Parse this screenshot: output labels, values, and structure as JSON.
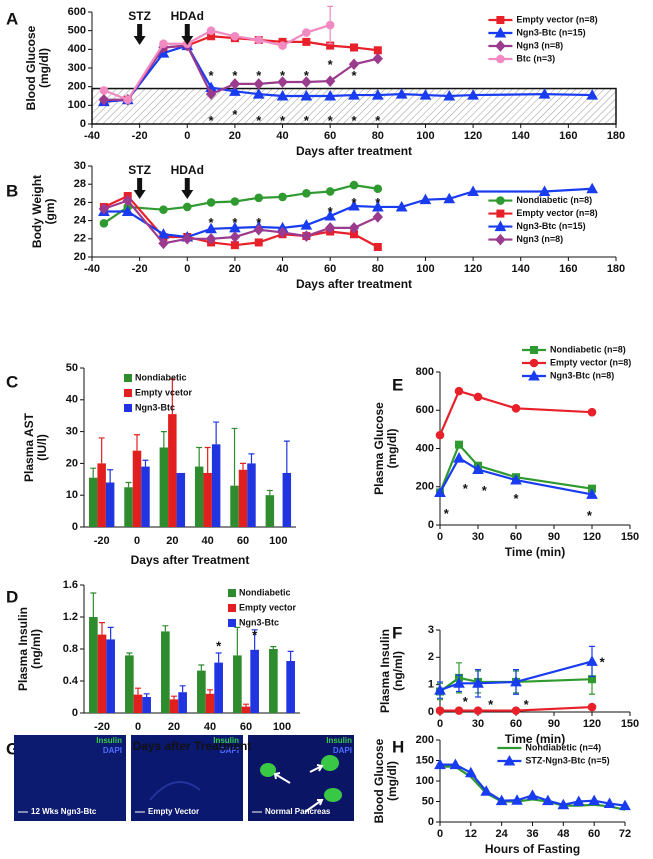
{
  "chart_data": [
    {
      "type": "line",
      "label": "A",
      "ylabel": [
        "Blood Glucose",
        "(mg/dl)"
      ],
      "xlabel": "Days after treatment",
      "xlim": [
        -40,
        180
      ],
      "xticks": [
        -40,
        -20,
        0,
        20,
        40,
        60,
        80,
        100,
        120,
        140,
        160,
        180
      ],
      "ylim": [
        0,
        600
      ],
      "yticks": [
        0,
        100,
        200,
        300,
        400,
        500,
        600
      ],
      "band": [
        0,
        190
      ],
      "legend": "upper right",
      "arrows": [
        {
          "text": "STZ",
          "x": -20
        },
        {
          "text": "HDAd",
          "x": 0
        }
      ],
      "series": [
        {
          "name": "Empty vector (n=8)",
          "color": "#e8202a",
          "marker": "square",
          "x": [
            -35,
            -25,
            -10,
            0,
            10,
            20,
            30,
            40,
            50,
            60,
            70,
            80
          ],
          "values": [
            120,
            130,
            410,
            420,
            470,
            460,
            450,
            440,
            440,
            420,
            410,
            395
          ]
        },
        {
          "name": "Ngn3-Btc (n=15)",
          "color": "#1a3cf0",
          "marker": "triangle",
          "x": [
            -35,
            -25,
            -10,
            0,
            10,
            20,
            30,
            40,
            50,
            60,
            70,
            80,
            90,
            100,
            110,
            120,
            150,
            170
          ],
          "values": [
            120,
            130,
            380,
            420,
            195,
            175,
            160,
            150,
            150,
            150,
            155,
            155,
            160,
            155,
            150,
            155,
            160,
            155
          ]
        },
        {
          "name": "Ngn3 (n=8)",
          "color": "#9b3b8e",
          "marker": "diamond",
          "x": [
            -35,
            -25,
            -10,
            0,
            10,
            20,
            30,
            40,
            50,
            60,
            70,
            80
          ],
          "values": [
            130,
            130,
            410,
            420,
            160,
            215,
            215,
            225,
            225,
            230,
            320,
            350
          ]
        },
        {
          "name": "Btc (n=3)",
          "color": "#f08ac0",
          "marker": "circle",
          "x": [
            -35,
            -25,
            -10,
            0,
            10,
            20,
            30,
            40,
            50,
            60
          ],
          "values": [
            180,
            130,
            430,
            430,
            500,
            470,
            450,
            420,
            490,
            530
          ],
          "errors": [
            null,
            null,
            null,
            null,
            null,
            null,
            null,
            null,
            null,
            100
          ]
        }
      ],
      "annotations": [
        {
          "text": "*",
          "x": 10,
          "y": 270
        },
        {
          "text": "*",
          "x": 20,
          "y": 270
        },
        {
          "text": "*",
          "x": 30,
          "y": 270
        },
        {
          "text": "*",
          "x": 40,
          "y": 270
        },
        {
          "text": "*",
          "x": 50,
          "y": 270
        },
        {
          "text": "*",
          "x": 60,
          "y": 330
        },
        {
          "text": "*",
          "x": 70,
          "y": 270
        },
        {
          "text": "*",
          "x": 10,
          "y": 30
        },
        {
          "text": "*",
          "x": 20,
          "y": 60
        },
        {
          "text": "*",
          "x": 30,
          "y": 30
        },
        {
          "text": "*",
          "x": 40,
          "y": 30
        },
        {
          "text": "*",
          "x": 50,
          "y": 30
        },
        {
          "text": "*",
          "x": 60,
          "y": 30
        },
        {
          "text": "*",
          "x": 70,
          "y": 30
        },
        {
          "text": "*",
          "x": 80,
          "y": 30
        }
      ]
    },
    {
      "type": "line",
      "label": "B",
      "ylabel": [
        "Body Weight",
        "(gm)"
      ],
      "xlabel": "Days after treatment",
      "xlim": [
        -40,
        180
      ],
      "xticks": [
        -40,
        -20,
        0,
        20,
        40,
        60,
        80,
        100,
        120,
        140,
        160,
        180
      ],
      "ylim": [
        20,
        30
      ],
      "yticks": [
        20,
        22,
        24,
        26,
        28,
        30
      ],
      "legend": "center right",
      "arrows": [
        {
          "text": "STZ",
          "x": -20
        },
        {
          "text": "HDAd",
          "x": 0
        }
      ],
      "series": [
        {
          "name": "Nondiabetic (n=8)",
          "color": "#2f9a2f",
          "marker": "circle",
          "x": [
            -35,
            -25,
            -10,
            0,
            10,
            20,
            30,
            40,
            50,
            60,
            70,
            80
          ],
          "values": [
            23.7,
            25.5,
            25.2,
            25.5,
            26,
            26.1,
            26.5,
            26.6,
            27,
            27.2,
            27.9,
            27.5
          ]
        },
        {
          "name": "Empty vector (n=8)",
          "color": "#e8202a",
          "marker": "square",
          "x": [
            -35,
            -25,
            -10,
            0,
            10,
            20,
            30,
            40,
            50,
            60,
            70,
            80
          ],
          "values": [
            25.5,
            26.7,
            22.2,
            22.2,
            21.6,
            21.3,
            21.6,
            22.5,
            22.3,
            22.8,
            22.5,
            21.1
          ]
        },
        {
          "name": "Ngn3-Btc (n=15)",
          "color": "#1a3cf0",
          "marker": "triangle",
          "x": [
            -35,
            -25,
            -10,
            0,
            10,
            20,
            30,
            40,
            50,
            60,
            70,
            80,
            90,
            100,
            110,
            120,
            150,
            170
          ],
          "values": [
            25,
            25,
            22.5,
            22.2,
            23.1,
            23.2,
            23.3,
            23.2,
            23.5,
            24.5,
            25.6,
            25.5,
            25.5,
            26.3,
            26.4,
            27.2,
            27.2,
            27.5
          ]
        },
        {
          "name": "Ngn3 (n=8)",
          "color": "#9b3b8e",
          "marker": "diamond",
          "x": [
            -35,
            -25,
            -10,
            0,
            10,
            20,
            30,
            40,
            50,
            60,
            70,
            80
          ],
          "values": [
            25.3,
            26.2,
            21.5,
            22,
            22,
            22.2,
            23,
            22.7,
            22.3,
            23.2,
            23.2,
            24.4
          ]
        }
      ],
      "annotations": [
        {
          "text": "*",
          "x": 10,
          "y": 24
        },
        {
          "text": "*",
          "x": 20,
          "y": 24
        },
        {
          "text": "*",
          "x": 30,
          "y": 24
        },
        {
          "text": "*",
          "x": 60,
          "y": 25.2
        },
        {
          "text": "*",
          "x": 70,
          "y": 26.2
        },
        {
          "text": "*",
          "x": 80,
          "y": 26.2
        }
      ]
    },
    {
      "type": "bar",
      "label": "C",
      "ylabel": [
        "Plasma AST",
        "(IU/l)"
      ],
      "xlabel": "Days after Treatment",
      "categories": [
        "-20",
        "0",
        "20",
        "40",
        "60",
        "100"
      ],
      "ylim": [
        0,
        50
      ],
      "yticks": [
        0,
        10,
        20,
        30,
        40,
        50
      ],
      "legend": "upper left",
      "series": [
        {
          "name": "Nondiabetic",
          "color": "#2e8b2e",
          "values": [
            15.5,
            12.5,
            25,
            19,
            13,
            10
          ],
          "errors": [
            3,
            1.5,
            5,
            6,
            18,
            1.5
          ]
        },
        {
          "name": "Empty vcetor",
          "color": "#e21f1f",
          "values": [
            20,
            24,
            35.5,
            17,
            18,
            null
          ],
          "errors": [
            8,
            5,
            11,
            8,
            2,
            null
          ]
        },
        {
          "name": "Ngn3-Btc",
          "color": "#2035e0",
          "values": [
            14,
            19,
            17,
            26,
            20,
            17
          ],
          "errors": [
            4,
            2,
            null,
            7,
            3,
            10
          ]
        }
      ]
    },
    {
      "type": "bar",
      "label": "D",
      "ylabel": [
        "Plasma Insulin",
        "(ng/ml)"
      ],
      "xlabel": "Days after Treatment",
      "categories": [
        "-20",
        "0",
        "20",
        "40",
        "60",
        "100"
      ],
      "ylim": [
        0,
        1.6
      ],
      "yticks": [
        0,
        0.4,
        0.8,
        1.2,
        1.6
      ],
      "legend": "upper right",
      "series": [
        {
          "name": "Nondiabetic",
          "color": "#2e8b2e",
          "values": [
            1.2,
            0.72,
            1.02,
            0.53,
            0.72,
            0.8
          ],
          "errors": [
            0.3,
            0.03,
            0.07,
            0.07,
            0.35,
            0.03
          ]
        },
        {
          "name": "Empty vector",
          "color": "#e21f1f",
          "values": [
            0.98,
            0.23,
            0.17,
            0.24,
            0.08,
            null
          ],
          "errors": [
            0.15,
            0.08,
            0.04,
            0.05,
            0.03,
            null
          ]
        },
        {
          "name": "Ngn3-Btc",
          "color": "#2035e0",
          "values": [
            0.92,
            0.2,
            0.26,
            0.63,
            0.79,
            0.65
          ],
          "errors": [
            0.15,
            0.04,
            0.08,
            0.12,
            0.25,
            0.12
          ]
        }
      ],
      "annotations": [
        {
          "text": "*",
          "category": "40",
          "y": 0.86
        },
        {
          "text": "*",
          "category": "60",
          "y": 1.0
        }
      ]
    },
    {
      "type": "line",
      "label": "E",
      "ylabel": [
        "Plasma Glucose",
        "(mg/dl)"
      ],
      "xlabel": "Time (min)",
      "xlim": [
        0,
        150
      ],
      "xticks": [
        0,
        30,
        60,
        90,
        120,
        150
      ],
      "ylim": [
        0,
        800
      ],
      "yticks": [
        0,
        200,
        400,
        600,
        800
      ],
      "legend": "top",
      "x": [
        0,
        15,
        30,
        60,
        120
      ],
      "series": [
        {
          "name": "Nondiabetic (n=8)",
          "color": "#2f9a2f",
          "marker": "square",
          "values": [
            170,
            420,
            310,
            250,
            190
          ]
        },
        {
          "name": "Empty vector (n=8)",
          "color": "#e8202a",
          "marker": "circle",
          "values": [
            470,
            700,
            670,
            610,
            590
          ]
        },
        {
          "name": "Ngn3-Btc (n=8)",
          "color": "#1a3cf0",
          "marker": "triangle",
          "values": [
            170,
            350,
            290,
            235,
            160
          ]
        }
      ],
      "annotations": [
        {
          "text": "*",
          "x": 5,
          "y": 70
        },
        {
          "text": "*",
          "x": 20,
          "y": 200
        },
        {
          "text": "*",
          "x": 35,
          "y": 190
        },
        {
          "text": "*",
          "x": 60,
          "y": 150
        },
        {
          "text": "*",
          "x": 118,
          "y": 60
        }
      ]
    },
    {
      "type": "line",
      "label": "F",
      "ylabel": [
        "Plasma Insulin",
        "(ng/ml)"
      ],
      "xlabel": "Time (min)",
      "xlim": [
        0,
        150
      ],
      "xticks": [
        0,
        30,
        60,
        90,
        120,
        150
      ],
      "ylim": [
        0,
        3
      ],
      "yticks": [
        0,
        1,
        2,
        3
      ],
      "x": [
        0,
        15,
        30,
        60,
        120
      ],
      "series": [
        {
          "color": "#2f9a2f",
          "marker": "square",
          "values": [
            0.75,
            1.25,
            1.1,
            1.1,
            1.2
          ],
          "errors": [
            0.3,
            0.55,
            0.4,
            0.4,
            0.55
          ]
        },
        {
          "color": "#e8202a",
          "marker": "circle",
          "values": [
            0.05,
            0.05,
            0.05,
            0.05,
            0.18
          ]
        },
        {
          "color": "#1a3cf0",
          "marker": "triangle",
          "values": [
            0.8,
            1.05,
            1.05,
            1.1,
            1.85
          ],
          "errors": [
            0.3,
            0.3,
            0.5,
            0.45,
            0.55
          ]
        }
      ],
      "annotations": [
        {
          "text": "*",
          "x": 128,
          "y": 1.9
        },
        {
          "text": "*",
          "x": 20,
          "y": 0.45
        },
        {
          "text": "*",
          "x": 40,
          "y": 0.35
        },
        {
          "text": "*",
          "x": 68,
          "y": 0.35
        }
      ]
    },
    {
      "type": "line",
      "label": "H",
      "ylabel": [
        "Blood Glucose",
        "(mg/dl)"
      ],
      "xlabel": "Hours of Fasting",
      "xlim": [
        0,
        72
      ],
      "xticks": [
        0,
        12,
        24,
        36,
        48,
        60,
        72
      ],
      "ylim": [
        0,
        200
      ],
      "yticks": [
        0,
        50,
        100,
        150,
        200
      ],
      "legend": "upper right",
      "x": [
        0,
        6,
        12,
        18,
        24,
        30,
        36,
        42,
        48,
        54,
        60,
        66,
        72
      ],
      "series": [
        {
          "name": "Nondiabetic (n=4)",
          "color": "#2f9a2f",
          "marker": "none",
          "values": [
            135,
            135,
            110,
            70,
            50,
            50,
            55,
            50,
            40,
            40,
            42,
            38,
            30
          ]
        },
        {
          "name": "STZ-Ngn3-Btc (n=5)",
          "color": "#1a3cf0",
          "marker": "triangle",
          "values": [
            140,
            140,
            120,
            75,
            52,
            53,
            65,
            52,
            42,
            50,
            52,
            45,
            40
          ]
        }
      ]
    }
  ],
  "panel_g": {
    "label": "G",
    "images": [
      {
        "caption": "12 Wks Ngn3-Btc",
        "stain1": "Insulin",
        "stain2": "DAPI"
      },
      {
        "caption": "Empty Vector",
        "stain1": "Insulin",
        "stain2": "DAPI"
      },
      {
        "caption": "Normal Pancreas",
        "stain1": "Insulin",
        "stain2": "DAPI"
      }
    ]
  }
}
